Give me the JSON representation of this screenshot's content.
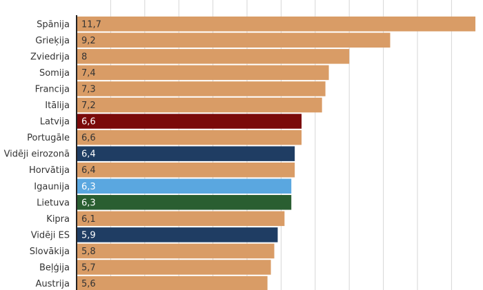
{
  "chart_data": {
    "type": "bar",
    "orientation": "horizontal",
    "categories": [
      "Spānija",
      "Grieķija",
      "Zviedrija",
      "Somija",
      "Francija",
      "Itālija",
      "Latvija",
      "Portugāle",
      "Vidēji eirozonā",
      "Horvātija",
      "Igaunija",
      "Lietuva",
      "Kipra",
      "Vidēji ES",
      "Slovākija",
      "Beļģija",
      "Austrija"
    ],
    "values": [
      11.7,
      9.2,
      8,
      7.4,
      7.3,
      7.2,
      6.6,
      6.6,
      6.4,
      6.4,
      6.3,
      6.3,
      6.1,
      5.9,
      5.8,
      5.7,
      5.6
    ],
    "value_labels": [
      "11,7",
      "9,2",
      "8",
      "7,4",
      "7,3",
      "7,2",
      "6,6",
      "6,6",
      "6,4",
      "6,4",
      "6,3",
      "6,3",
      "6,1",
      "5,9",
      "5,8",
      "5,7",
      "5,6"
    ],
    "bar_colors": [
      "#d99c66",
      "#d99c66",
      "#d99c66",
      "#d99c66",
      "#d99c66",
      "#d99c66",
      "#7b0a0a",
      "#d99c66",
      "#1f3d63",
      "#d99c66",
      "#5aa7e0",
      "#2a5e31",
      "#d99c66",
      "#1f3d63",
      "#d99c66",
      "#d99c66",
      "#d99c66"
    ],
    "label_colors": [
      "#333333",
      "#333333",
      "#333333",
      "#333333",
      "#333333",
      "#333333",
      "#ffffff",
      "#333333",
      "#ffffff",
      "#333333",
      "#ffffff",
      "#ffffff",
      "#333333",
      "#ffffff",
      "#333333",
      "#333333",
      "#333333"
    ],
    "xlim": [
      0,
      12
    ],
    "grid_step": 1,
    "grid": true,
    "title": "",
    "xlabel": "",
    "ylabel": ""
  }
}
